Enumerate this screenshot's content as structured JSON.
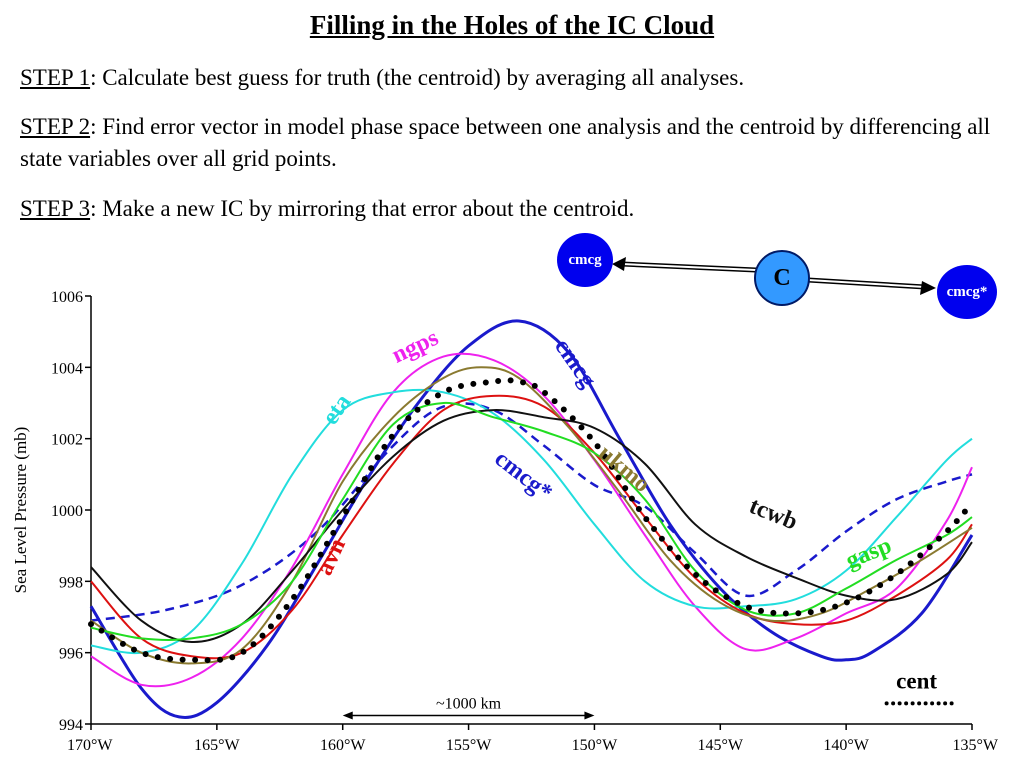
{
  "header": {
    "title": "Filling in the Holes of the IC Cloud",
    "step1_label": "STEP 1",
    "step1_text": ":  Calculate best guess for truth (the centroid) by averaging all analyses.",
    "step2_label": "STEP 2",
    "step2_text": ":  Find error vector in model phase space between one analysis and the centroid by differencing all state variables over all grid points.",
    "step3_label": "STEP 3",
    "step3_text": ":  Make a new IC by mirroring that error about the centroid."
  },
  "diagram": {
    "left_node": "cmcg",
    "center_node": "C",
    "right_node": "cmcg*"
  },
  "chart_data": {
    "type": "line",
    "title": "",
    "xlabel": "",
    "ylabel": "Sea Level Pressure (mb)",
    "xlim": [
      -170,
      -135
    ],
    "ylim": [
      994,
      1006
    ],
    "x_ticks": [
      -170,
      -165,
      -160,
      -155,
      -150,
      -145,
      -140,
      -135
    ],
    "x_tick_labels": [
      "170°W",
      "165°W",
      "160°W",
      "155°W",
      "150°W",
      "145°W",
      "140°W",
      "135°W"
    ],
    "y_ticks": [
      994,
      996,
      998,
      1000,
      1002,
      1004,
      1006
    ],
    "y_tick_labels": [
      "994",
      "996",
      "998",
      "1000",
      "1002",
      "1004",
      "1006"
    ],
    "grid": false,
    "scale_bar": {
      "label": "~1000 km",
      "x_start": -160,
      "x_end": -150,
      "y": 994.35
    },
    "series": [
      {
        "name": "cmcg",
        "color": "#1a1acc",
        "style": "solid",
        "x": [
          -170,
          -168,
          -166.5,
          -165,
          -163,
          -161,
          -159,
          -157,
          -155,
          -153,
          -151,
          -149,
          -147,
          -145,
          -143,
          -141,
          -140,
          -139,
          -137,
          -135
        ],
        "y": [
          997.3,
          995.0,
          994.2,
          994.6,
          996.2,
          998.5,
          1000.9,
          1003.0,
          1004.6,
          1005.3,
          1004.4,
          1002.0,
          999.6,
          997.8,
          996.6,
          995.9,
          995.8,
          996.0,
          997.1,
          999.3
        ],
        "label": {
          "text": "cmcg",
          "x": -151,
          "y": 1004.0,
          "rotate": 55,
          "color": "#1a1acc"
        }
      },
      {
        "name": "cmcg*",
        "color": "#1a1acc",
        "style": "dashed",
        "x": [
          -170,
          -167,
          -164,
          -161,
          -158,
          -156,
          -154,
          -152,
          -150,
          -148,
          -146,
          -144,
          -142,
          -140,
          -138,
          -136,
          -135
        ],
        "y": [
          996.9,
          997.2,
          997.9,
          999.4,
          1001.8,
          1002.9,
          1002.8,
          1001.8,
          1000.7,
          1000.1,
          998.8,
          997.6,
          998.3,
          999.4,
          1000.3,
          1000.8,
          1001.0
        ],
        "label": {
          "text": "cmcg*",
          "x": -153,
          "y": 1000.8,
          "rotate": 38,
          "color": "#1a1acc"
        }
      },
      {
        "name": "ngps",
        "color": "#ee22ee",
        "style": "solid",
        "x": [
          -170,
          -168,
          -166,
          -164,
          -162,
          -160,
          -158,
          -156,
          -154,
          -152,
          -150,
          -148,
          -146,
          -144,
          -142,
          -140,
          -138,
          -136,
          -135
        ],
        "y": [
          995.9,
          995.1,
          995.3,
          996.4,
          998.4,
          1001.0,
          1003.3,
          1004.3,
          1004.2,
          1003.2,
          1001.4,
          999.3,
          997.3,
          996.1,
          996.4,
          997.1,
          997.8,
          999.7,
          1001.2
        ],
        "label": {
          "text": "ngps",
          "x": -157,
          "y": 1004.4,
          "rotate": -25,
          "color": "#ee22ee"
        }
      },
      {
        "name": "eta",
        "color": "#22dddd",
        "style": "solid",
        "x": [
          -170,
          -168,
          -166,
          -164,
          -162,
          -160,
          -158,
          -156,
          -154,
          -152,
          -150,
          -148,
          -146,
          -144,
          -142,
          -140,
          -138,
          -136,
          -135
        ],
        "y": [
          996.2,
          996.0,
          996.6,
          998.5,
          1001.0,
          1002.8,
          1003.3,
          1003.3,
          1002.7,
          1001.4,
          999.6,
          998.0,
          997.3,
          997.3,
          997.5,
          998.3,
          999.8,
          1001.4,
          1002.0
        ],
        "label": {
          "text": "eta",
          "x": -160,
          "y": 1002.7,
          "rotate": -55,
          "color": "#22dddd"
        }
      },
      {
        "name": "avn",
        "color": "#dd1111",
        "style": "solid",
        "x": [
          -170,
          -168,
          -166,
          -164,
          -162,
          -160,
          -158,
          -156,
          -154,
          -152,
          -150,
          -148,
          -146,
          -144,
          -142,
          -140,
          -138,
          -136,
          -135
        ],
        "y": [
          998.0,
          996.4,
          995.9,
          996.0,
          997.2,
          999.3,
          1001.3,
          1002.8,
          1003.2,
          1002.9,
          1001.6,
          999.8,
          998.1,
          997.1,
          996.8,
          996.9,
          997.6,
          998.6,
          999.6
        ],
        "label": {
          "text": "avn",
          "x": -160.2,
          "y": 998.6,
          "rotate": -65,
          "color": "#dd1111"
        }
      },
      {
        "name": "ukmo",
        "color": "#8a7a30",
        "style": "solid",
        "x": [
          -170,
          -168,
          -166,
          -164,
          -162,
          -160,
          -158,
          -156,
          -154.5,
          -153,
          -151,
          -149,
          -147,
          -145,
          -143,
          -141,
          -139,
          -137,
          -135
        ],
        "y": [
          996.9,
          996.0,
          995.7,
          996.1,
          998.0,
          1000.8,
          1002.6,
          1003.7,
          1004.0,
          1003.7,
          1002.3,
          1000.5,
          998.6,
          997.4,
          996.9,
          997.1,
          997.8,
          998.6,
          999.5
        ],
        "label": {
          "text": "ukmo",
          "x": -149,
          "y": 1001.0,
          "rotate": 40,
          "color": "#8a7a30"
        }
      },
      {
        "name": "tcwb",
        "color": "#111111",
        "style": "solid",
        "x": [
          -170,
          -168,
          -166,
          -164,
          -162,
          -160,
          -158,
          -156,
          -154,
          -152,
          -150,
          -148,
          -146,
          -144,
          -142,
          -140,
          -138,
          -136,
          -135
        ],
        "y": [
          998.4,
          996.9,
          996.3,
          996.8,
          998.3,
          1000.0,
          1001.5,
          1002.5,
          1002.8,
          1002.6,
          1002.3,
          1001.3,
          999.6,
          998.7,
          998.1,
          997.6,
          997.5,
          998.2,
          999.1
        ],
        "label": {
          "text": "tcwb",
          "x": -143,
          "y": 999.7,
          "rotate": 22,
          "color": "#111111"
        }
      },
      {
        "name": "gasp",
        "color": "#22dd22",
        "style": "solid",
        "x": [
          -170,
          -168,
          -166,
          -164,
          -162,
          -160,
          -158,
          -156,
          -154,
          -152,
          -150,
          -148,
          -146,
          -144,
          -142,
          -140,
          -138,
          -136,
          -135
        ],
        "y": [
          996.7,
          996.4,
          996.4,
          996.8,
          998.0,
          1000.3,
          1002.4,
          1003.0,
          1002.6,
          1002.2,
          1001.6,
          1000.3,
          998.3,
          997.2,
          997.1,
          997.8,
          998.6,
          999.3,
          999.8
        ],
        "label": {
          "text": "gasp",
          "x": -139,
          "y": 998.6,
          "rotate": -22,
          "color": "#22dd22"
        }
      },
      {
        "name": "cent",
        "color": "#000000",
        "style": "dotted",
        "x": [
          -170,
          -168,
          -166,
          -164,
          -162,
          -160,
          -158,
          -156,
          -154,
          -153,
          -152,
          -150,
          -148,
          -146,
          -144,
          -142,
          -140,
          -138,
          -136,
          -135
        ],
        "y": [
          996.8,
          996.0,
          995.8,
          996.0,
          997.5,
          999.8,
          1002.1,
          1003.3,
          1003.6,
          1003.6,
          1003.3,
          1001.9,
          999.8,
          998.2,
          997.3,
          997.1,
          997.4,
          998.2,
          999.4,
          1000.2
        ],
        "label": {
          "text": "cent",
          "x": -137.2,
          "y": 995.0,
          "rotate": 0,
          "color": "#000000"
        }
      }
    ]
  }
}
